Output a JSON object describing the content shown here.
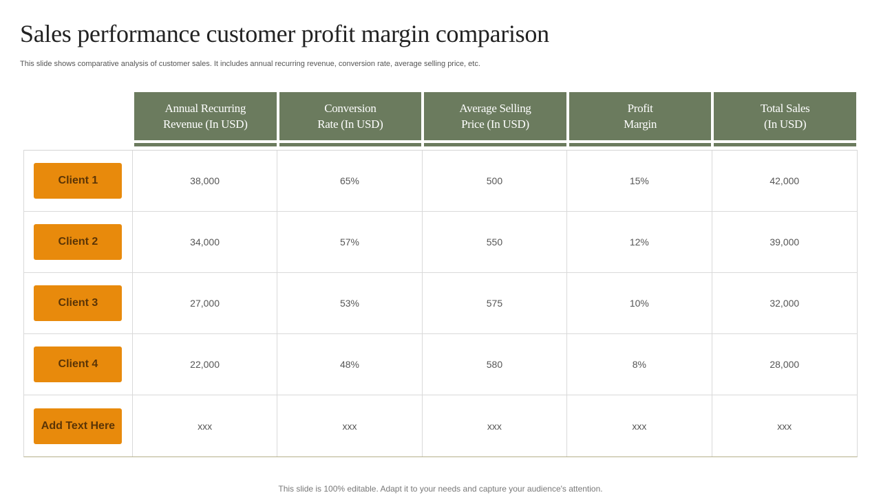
{
  "slide": {
    "title": "Sales performance customer profit margin comparison",
    "subtitle": "This slide shows comparative analysis of customer sales. It includes annual recurring revenue, conversion rate, average selling price, etc.",
    "footer": "This slide is 100% editable. Adapt it to your needs and capture your audience's attention."
  },
  "table": {
    "headers": [
      "Annual Recurring\nRevenue (In USD)",
      "Conversion\nRate (In USD)",
      "Average Selling\nPrice (In USD)",
      "Profit\nMargin",
      "Total Sales\n(In USD)"
    ],
    "rows": [
      {
        "label": "Client 1",
        "cells": [
          "38,000",
          "65%",
          "500",
          "15%",
          "42,000"
        ]
      },
      {
        "label": "Client 2",
        "cells": [
          "34,000",
          "57%",
          "550",
          "12%",
          "39,000"
        ]
      },
      {
        "label": "Client 3",
        "cells": [
          "27,000",
          "53%",
          "575",
          "10%",
          "32,000"
        ]
      },
      {
        "label": "Client 4",
        "cells": [
          "22,000",
          "48%",
          "580",
          "8%",
          "28,000"
        ]
      },
      {
        "label": "Add Text Here",
        "cells": [
          "xxx",
          "xxx",
          "xxx",
          "xxx",
          "xxx"
        ]
      }
    ]
  },
  "colors": {
    "header_green": "#6b7b5e",
    "client_orange": "#e88a0c"
  }
}
